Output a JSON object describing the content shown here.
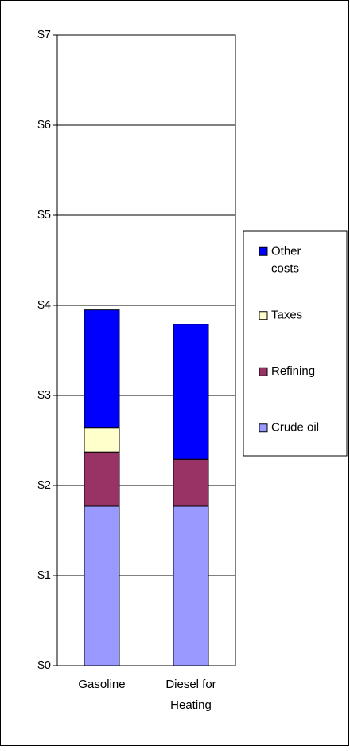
{
  "chart_data": {
    "type": "stacked-bar",
    "categories": [
      "Gasoline",
      "Diesel for Heating"
    ],
    "series": [
      {
        "name": "Crude oil",
        "color": "#9999ff",
        "values": [
          1.77,
          1.77
        ]
      },
      {
        "name": "Refining",
        "color": "#993366",
        "values": [
          0.6,
          0.52
        ]
      },
      {
        "name": "Taxes",
        "color": "#ffffcc",
        "values": [
          0.27,
          0
        ]
      },
      {
        "name": "Other costs",
        "color": "#0000ff",
        "values": [
          1.31,
          1.5
        ]
      }
    ],
    "ylim": [
      0,
      7
    ],
    "yticks": [
      {
        "value": 0,
        "label": "$0"
      },
      {
        "value": 1,
        "label": "$1"
      },
      {
        "value": 2,
        "label": "$2"
      },
      {
        "value": 3,
        "label": "$3"
      },
      {
        "value": 4,
        "label": "$4"
      },
      {
        "value": 5,
        "label": "$5"
      },
      {
        "value": 6,
        "label": "$6"
      },
      {
        "value": 7,
        "label": "$7"
      }
    ],
    "grid": true,
    "legend": "right"
  }
}
